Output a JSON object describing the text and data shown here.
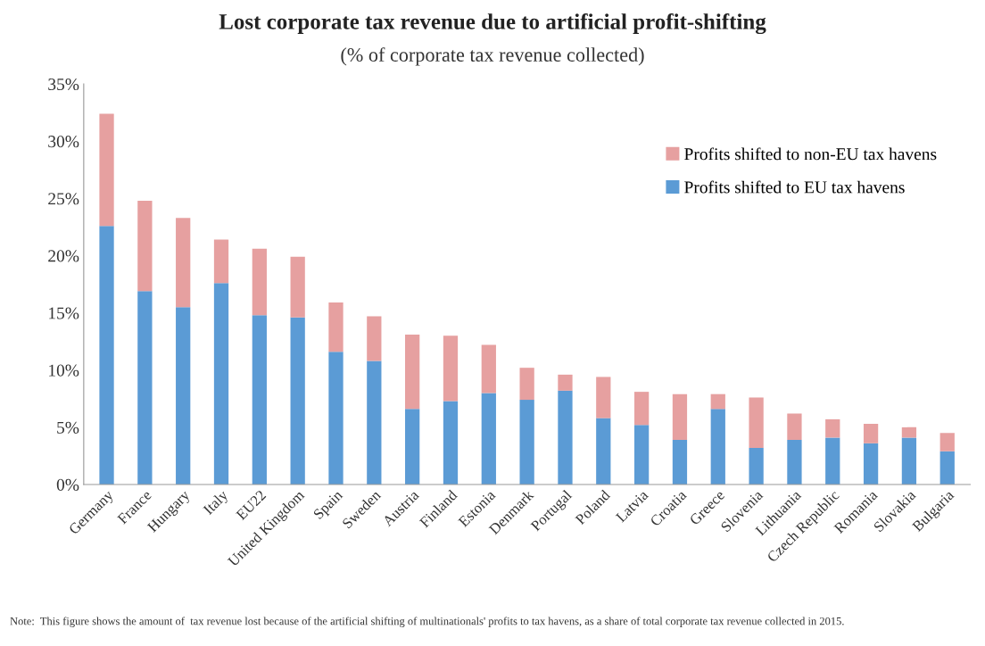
{
  "chart_data": {
    "type": "bar",
    "stacked": true,
    "title": "Lost corporate tax revenue due to artificial profit-shifting",
    "subtitle": "(% of corporate tax revenue collected)",
    "categories": [
      "Germany",
      "France",
      "Hungary",
      "Italy",
      "EU22",
      "United Kingdom",
      "Spain",
      "Sweden",
      "Austria",
      "Finland",
      "Estonia",
      "Denmark",
      "Portugal",
      "Poland",
      "Latvia",
      "Croatia",
      "Greece",
      "Slovenia",
      "Lithuania",
      "Czech Republic",
      "Romania",
      "Slovakia",
      "Bulgaria"
    ],
    "series": [
      {
        "name": "Profits shifted to EU tax havens",
        "color": "#5b9bd5",
        "values": [
          22.6,
          16.9,
          15.5,
          17.6,
          14.8,
          14.6,
          11.6,
          10.8,
          6.6,
          7.3,
          8.0,
          7.4,
          8.2,
          5.8,
          5.2,
          3.9,
          6.6,
          3.2,
          3.9,
          4.1,
          3.6,
          4.1,
          2.9
        ]
      },
      {
        "name": "Profits shifted to non-EU tax havens",
        "color": "#e6a0a0",
        "values": [
          9.8,
          7.9,
          7.8,
          3.8,
          5.8,
          5.3,
          4.3,
          3.9,
          6.5,
          5.7,
          4.2,
          2.8,
          1.4,
          3.6,
          2.9,
          4.0,
          1.3,
          4.4,
          2.3,
          1.6,
          1.7,
          0.9,
          1.6
        ]
      }
    ],
    "ylim": [
      0,
      35
    ],
    "yticks": [
      {
        "value": 0,
        "label": "0%"
      },
      {
        "value": 5,
        "label": "5%"
      },
      {
        "value": 10,
        "label": "10%"
      },
      {
        "value": 15,
        "label": "15%"
      },
      {
        "value": 20,
        "label": "20%"
      },
      {
        "value": 25,
        "label": "25%"
      },
      {
        "value": 30,
        "label": "30%"
      },
      {
        "value": 35,
        "label": "35%"
      }
    ],
    "grid": false,
    "legend": "top right",
    "annotations": [
      "Note:  This figure shows the amount of  tax revenue lost because of the artificial shifting of multinationals' profits to tax havens, as a share of total corporate tax revenue collected in 2015."
    ]
  }
}
